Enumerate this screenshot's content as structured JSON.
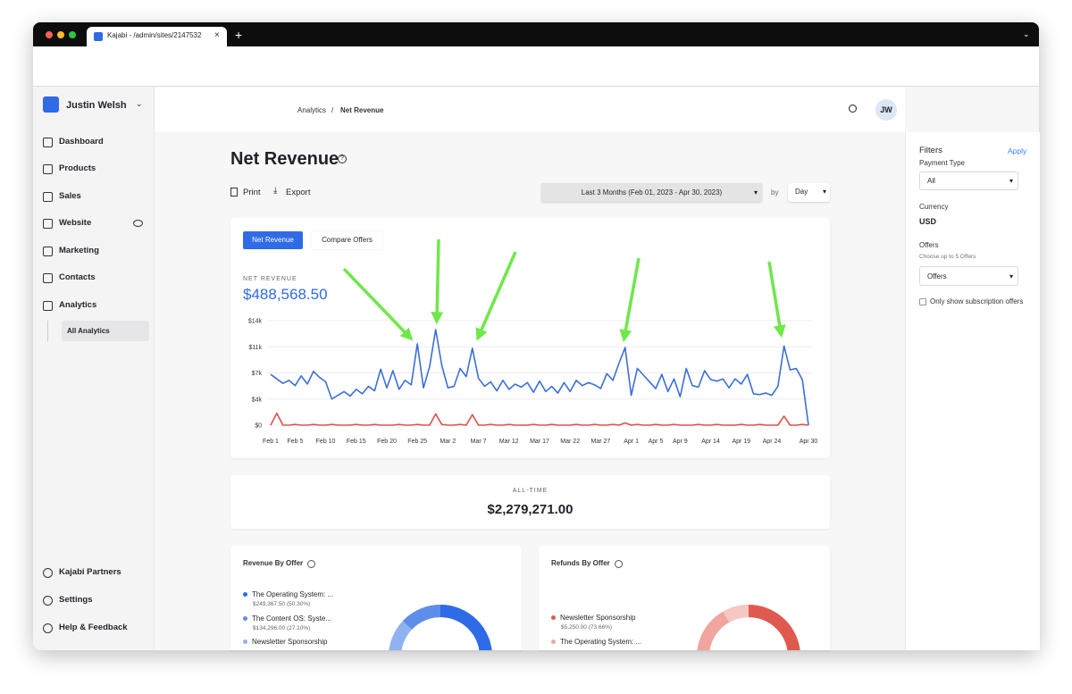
{
  "browser": {
    "tab_title": "Kajabi - /admin/sites/2147532"
  },
  "sidebar": {
    "account": "Justin Welsh",
    "nav": [
      "Dashboard",
      "Products",
      "Sales",
      "Website",
      "Marketing",
      "Contacts",
      "Analytics"
    ],
    "subnav": "All Analytics",
    "bottom": [
      "Kajabi Partners",
      "Settings",
      "Help & Feedback"
    ]
  },
  "header": {
    "breadcrumb_parent": "Analytics",
    "breadcrumb_sep": "/",
    "breadcrumb_current": "Net Revenue",
    "avatar": "JW"
  },
  "page": {
    "title": "Net Revenue",
    "print": "Print",
    "export": "Export",
    "date_range": "Last 3 Months (Feb 01, 2023  -  Apr 30, 2023)",
    "by": "by",
    "interval": "Day",
    "tabs": [
      "Net Revenue",
      "Compare Offers"
    ]
  },
  "chart_data": {
    "type": "line",
    "title": "NET REVENUE",
    "subtitle": "$488,568.50",
    "categories": [
      "Feb 1",
      null,
      null,
      null,
      "Feb 5",
      null,
      null,
      null,
      null,
      "Feb 10",
      null,
      null,
      null,
      null,
      "Feb 15",
      null,
      null,
      null,
      null,
      "Feb 20",
      null,
      null,
      null,
      null,
      "Feb 25",
      null,
      null,
      null,
      null,
      "Mar 2",
      null,
      null,
      null,
      null,
      "Mar 7",
      null,
      null,
      null,
      null,
      "Mar 12",
      null,
      null,
      null,
      null,
      "Mar 17",
      null,
      null,
      null,
      null,
      "Mar 22",
      null,
      null,
      null,
      null,
      "Mar 27",
      null,
      null,
      null,
      null,
      "Apr 1",
      null,
      null,
      null,
      "Apr 5",
      null,
      null,
      null,
      "Apr 9",
      null,
      null,
      null,
      null,
      "Apr 14",
      null,
      null,
      null,
      null,
      "Apr 19",
      null,
      null,
      null,
      null,
      "Apr 24",
      null,
      null,
      null,
      null,
      null,
      "Apr 30"
    ],
    "series": [
      {
        "color": "#3b6fd8",
        "values": [
          6800,
          6200,
          5600,
          6000,
          5300,
          6600,
          5500,
          7200,
          6400,
          5800,
          3500,
          4000,
          4500,
          3900,
          4800,
          4200,
          5200,
          4600,
          7500,
          5000,
          7300,
          4800,
          6000,
          5400,
          10900,
          5000,
          7800,
          12800,
          8000,
          5000,
          5200,
          7600,
          6500,
          10300,
          6300,
          5200,
          5800,
          4600,
          6000,
          4800,
          5500,
          5100,
          5700,
          4400,
          5900,
          4500,
          5200,
          4300,
          5700,
          4500,
          6000,
          5300,
          5700,
          5400,
          4900,
          6900,
          6000,
          8300,
          10400,
          4000,
          7600,
          6700,
          5800,
          4900,
          6800,
          4500,
          6200,
          3800,
          7600,
          5300,
          5100,
          7300,
          6100,
          5900,
          6200,
          5000,
          6200,
          5500,
          6800,
          4200,
          4100,
          4300,
          4000,
          5200,
          10600,
          7400,
          7600,
          6100,
          0
        ]
      },
      {
        "color": "#e0504a",
        "values": [
          0,
          1600,
          0,
          0,
          100,
          0,
          0,
          100,
          0,
          0,
          100,
          0,
          0,
          0,
          100,
          0,
          0,
          100,
          0,
          0,
          0,
          100,
          0,
          0,
          100,
          0,
          0,
          1500,
          100,
          0,
          0,
          100,
          0,
          1400,
          0,
          0,
          100,
          0,
          0,
          100,
          0,
          0,
          0,
          100,
          0,
          0,
          100,
          0,
          0,
          0,
          100,
          0,
          0,
          100,
          0,
          0,
          100,
          0,
          300,
          0,
          100,
          0,
          0,
          100,
          0,
          0,
          100,
          0,
          0,
          0,
          100,
          0,
          0,
          100,
          0,
          0,
          0,
          100,
          0,
          0,
          100,
          0,
          0,
          0,
          1200,
          0,
          0,
          100,
          0
        ]
      }
    ],
    "ylim": [
      0,
      14000
    ],
    "yticks": [
      {
        "value": 0,
        "label": "$0"
      },
      {
        "value": 3500,
        "label": "$4k"
      },
      {
        "value": 7000,
        "label": "$7k"
      },
      {
        "value": 10500,
        "label": "$11k"
      },
      {
        "value": 14000,
        "label": "$14k"
      }
    ],
    "grid": true
  },
  "all_time": {
    "label": "ALL-TIME",
    "value": "$2,279,271.00"
  },
  "revenue_by_offer": {
    "title": "Revenue By Offer",
    "items": [
      {
        "name": "The Operating System: ...",
        "detail": "$249,367.50 (50.30%)"
      },
      {
        "name": "The Content OS: Syste...",
        "detail": "$134,296.00 (27.10%)"
      },
      {
        "name": "Newsletter Sponsorship"
      }
    ]
  },
  "refunds_by_offer": {
    "title": "Refunds By Offer",
    "items": [
      {
        "name": "Newsletter Sponsorship",
        "detail": "$5,250.00 (73.66%)"
      },
      {
        "name": "The Operating System: ..."
      }
    ]
  },
  "filters": {
    "title": "Filters",
    "apply": "Apply",
    "payment_type_label": "Payment Type",
    "payment_type": "All",
    "currency_label": "Currency",
    "currency": "USD",
    "offers_label": "Offers",
    "offers_hint": "Choose up to 5 Offers",
    "offers": "Offers",
    "subscription_only": "Only show subscription offers"
  }
}
